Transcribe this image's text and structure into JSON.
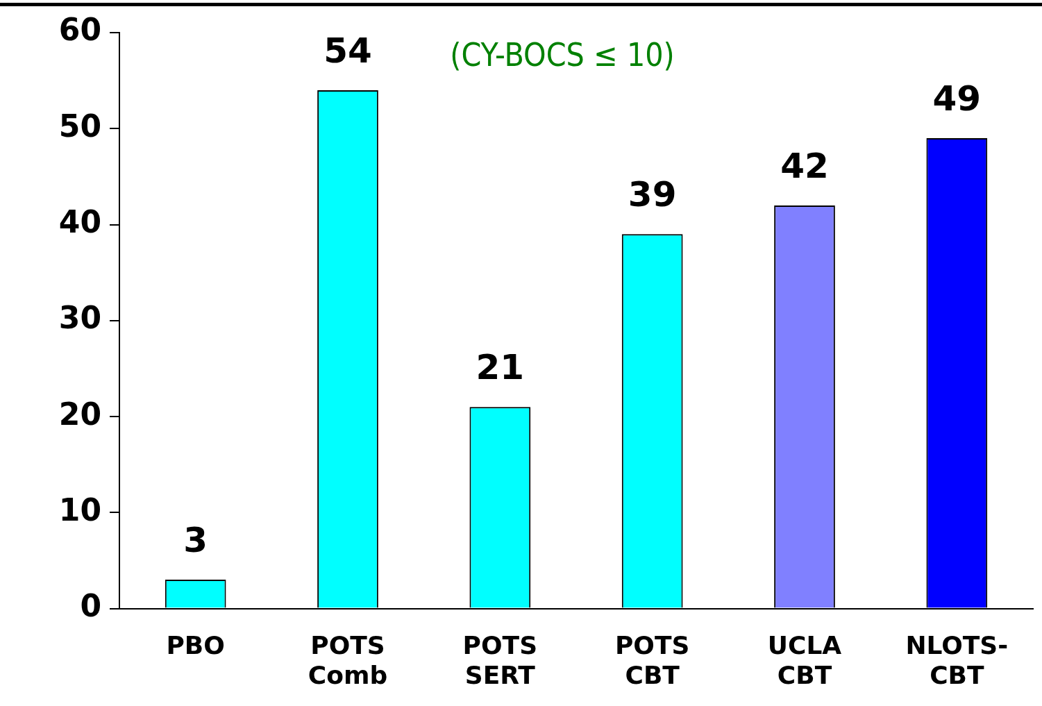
{
  "chart_data": {
    "type": "bar",
    "categories": [
      "PBO",
      "POTS Comb",
      "POTS SERT",
      "POTS CBT",
      "UCLA CBT",
      "NLOTS-CBT"
    ],
    "values": [
      3,
      54,
      21,
      39,
      42,
      49
    ],
    "colors": [
      "#00ffff",
      "#00ffff",
      "#00ffff",
      "#00ffff",
      "#8080ff",
      "#0000ff"
    ],
    "ylim": [
      0,
      60
    ],
    "yticks": [
      0,
      10,
      20,
      30,
      40,
      50,
      60
    ],
    "grid": false,
    "legend": false,
    "data_labels": true,
    "annotations": [
      "(CY-BOCS ≤ 10)"
    ]
  }
}
